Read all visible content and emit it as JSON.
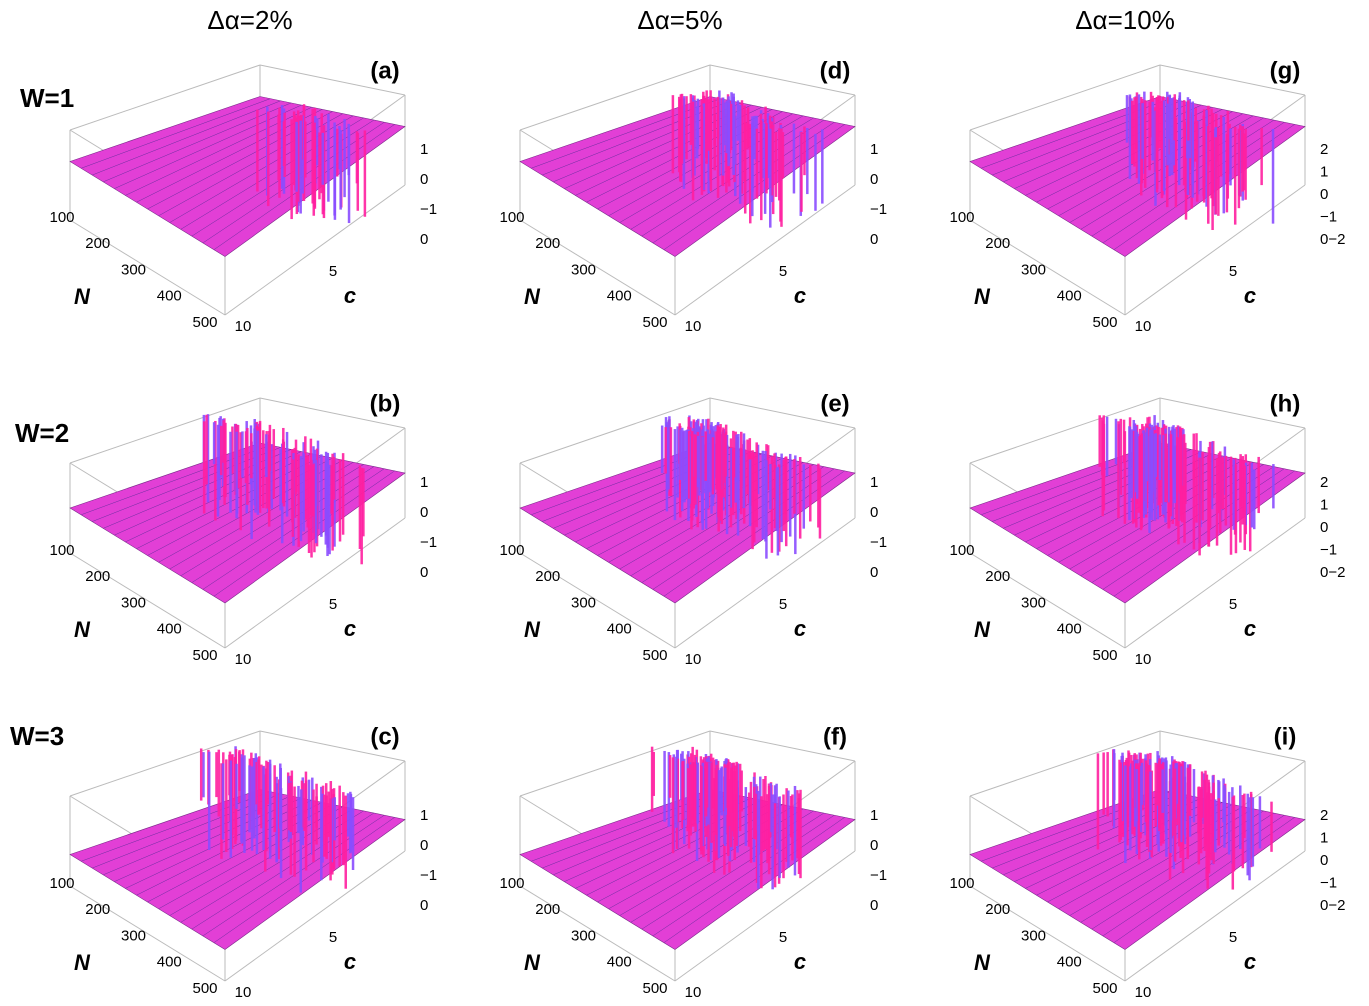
{
  "columns": [
    "Δα=2%",
    "Δα=5%",
    "Δα=10%"
  ],
  "rows": [
    "W=1",
    "W=2",
    "W=3"
  ],
  "axis_labels": {
    "n": "N",
    "c": "c"
  },
  "n_ticks": [
    "100",
    "200",
    "300",
    "400",
    "500"
  ],
  "c_ticks": [
    "5",
    "10"
  ],
  "z_ticks": [
    [
      "1",
      "0",
      "−1",
      "0"
    ],
    [
      "1",
      "0",
      "−1",
      "0"
    ],
    [
      "2",
      "1",
      "0",
      "−1",
      "0−2"
    ]
  ],
  "panels": [
    {
      "label": "(a)"
    },
    {
      "label": "(b)"
    },
    {
      "label": "(c)"
    },
    {
      "label": "(d)"
    },
    {
      "label": "(e)"
    },
    {
      "label": "(f)"
    },
    {
      "label": "(g)"
    },
    {
      "label": "(h)"
    },
    {
      "label": "(i)"
    }
  ]
}
